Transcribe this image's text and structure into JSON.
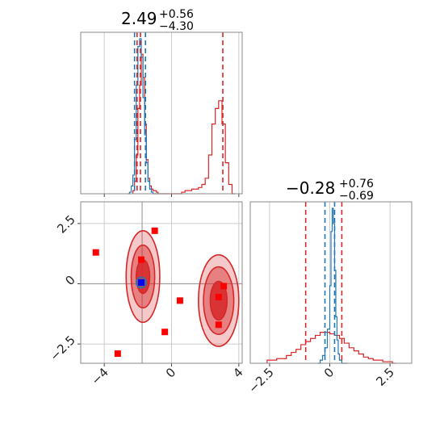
{
  "chart_data": [
    {
      "type": "line",
      "panel": "marginal histogram, parameter 1",
      "title": {
        "value": "2.49",
        "plus": "+0.56",
        "minus": "−4.30"
      },
      "xlim": [
        -5.4,
        4.2
      ],
      "xticks": [
        -4,
        0,
        4
      ],
      "grid": true,
      "series": [
        {
          "color": "#d62728",
          "step_x": [
            -2.3,
            -2.2,
            -2.1,
            -2.0,
            -1.9,
            -1.8,
            -1.7,
            -1.6,
            -1.5,
            -1.4,
            -1.3,
            -1.2,
            -1.1,
            -1.0,
            -0.9,
            -0.8,
            -0.6,
            -0.4,
            0.2,
            0.4,
            0.6,
            0.8,
            1.0,
            1.2,
            1.4,
            1.6,
            1.8,
            2.0,
            2.2,
            2.4,
            2.6,
            2.8,
            3.0,
            3.2,
            3.4,
            3.6
          ],
          "step_y": [
            0.02,
            0.08,
            0.25,
            0.55,
            0.7,
            0.9,
            0.75,
            0.45,
            0.22,
            0.1,
            0.05,
            0.03,
            0.02,
            0.02,
            0.01,
            0.0,
            0.0,
            0.0,
            0.0,
            0.0,
            0.01,
            0.02,
            0.02,
            0.03,
            0.03,
            0.04,
            0.06,
            0.1,
            0.25,
            0.45,
            0.55,
            0.6,
            0.45,
            0.2,
            0.06,
            0.0
          ]
        },
        {
          "color": "#1f77b4",
          "step_x": [
            -2.6,
            -2.5,
            -2.4,
            -2.3,
            -2.2,
            -2.1,
            -2.0,
            -1.9,
            -1.8,
            -1.7,
            -1.6,
            -1.5,
            -1.4,
            -1.3,
            -1.2,
            -1.1,
            -1.0
          ],
          "step_y": [
            0.0,
            0.01,
            0.05,
            0.12,
            0.35,
            0.7,
            0.95,
            1.0,
            0.88,
            0.62,
            0.38,
            0.2,
            0.08,
            0.03,
            0.01,
            0.0,
            0.0
          ]
        }
      ],
      "vlines": [
        {
          "color": "#d62728",
          "x": [
            -2.05,
            -1.85,
            3.05
          ]
        },
        {
          "color": "#1f77b4",
          "x": [
            -2.2,
            -1.55
          ]
        }
      ]
    },
    {
      "type": "scatter",
      "panel": "2D contours, parameter 1 vs parameter 2",
      "xlim": [
        -5.4,
        4.2
      ],
      "ylim": [
        -3.3,
        3.4
      ],
      "xticks": [
        -4,
        0,
        4
      ],
      "yticks": [
        2.5,
        0.0,
        -2.5
      ],
      "grid": true,
      "red_square_points": [
        [
          -4.5,
          1.3
        ],
        [
          -1.0,
          2.2
        ],
        [
          -1.8,
          1.0
        ],
        [
          -1.8,
          0.05
        ],
        [
          -3.2,
          -2.9
        ],
        [
          0.5,
          -0.7
        ],
        [
          -0.4,
          -2.0
        ],
        [
          2.8,
          -1.7
        ],
        [
          2.8,
          -0.55
        ],
        [
          3.1,
          -0.1
        ]
      ],
      "blue_square_points": [
        [
          -1.8,
          0.05
        ]
      ],
      "gray_crosshair": [
        -1.75,
        0.0
      ],
      "red_contours": [
        {
          "center": [
            -1.7,
            0.3
          ],
          "rx": [
            0.4,
            0.7,
            1.0
          ],
          "ry": [
            0.7,
            1.3,
            1.9
          ]
        },
        {
          "center": [
            2.8,
            -0.7
          ],
          "rx": [
            0.5,
            0.9,
            1.2
          ],
          "ry": [
            0.8,
            1.4,
            1.9
          ]
        }
      ],
      "blue_contours": [
        {
          "center": [
            -1.8,
            0.05
          ],
          "rx": [
            0.15,
            0.3
          ],
          "ry": [
            0.1,
            0.22
          ]
        }
      ]
    },
    {
      "type": "line",
      "panel": "marginal histogram, parameter 2",
      "title": {
        "value": "−0.28",
        "plus": "+0.76",
        "minus": "−0.69"
      },
      "xlim": [
        -3.3,
        3.4
      ],
      "xticks": [
        -2.5,
        0.0,
        2.5
      ],
      "grid": true,
      "series": [
        {
          "color": "#d62728",
          "step_x": [
            -2.6,
            -2.2,
            -1.8,
            -1.6,
            -1.4,
            -1.2,
            -1.0,
            -0.8,
            -0.6,
            -0.4,
            -0.2,
            0.0,
            0.2,
            0.4,
            0.6,
            0.8,
            1.0,
            1.2,
            1.4,
            1.6,
            1.8,
            2.0,
            2.2,
            2.6
          ],
          "step_y": [
            0.02,
            0.03,
            0.05,
            0.07,
            0.09,
            0.12,
            0.14,
            0.16,
            0.18,
            0.2,
            0.2,
            0.19,
            0.18,
            0.16,
            0.13,
            0.1,
            0.08,
            0.06,
            0.04,
            0.03,
            0.02,
            0.02,
            0.01,
            0.0
          ]
        },
        {
          "color": "#1f77b4",
          "step_x": [
            -0.5,
            -0.4,
            -0.3,
            -0.2,
            -0.1,
            0.0,
            0.05,
            0.1,
            0.15,
            0.2,
            0.25,
            0.3,
            0.35,
            0.4,
            0.5,
            0.6
          ],
          "step_y": [
            0.0,
            0.02,
            0.05,
            0.1,
            0.22,
            0.5,
            0.85,
            1.0,
            0.9,
            0.6,
            0.3,
            0.15,
            0.06,
            0.02,
            0.0,
            0.0
          ]
        }
      ],
      "vlines": [
        {
          "color": "#d62728",
          "x": [
            -1.0,
            0.5
          ]
        },
        {
          "color": "#1f77b4",
          "x": [
            -0.2,
            0.2
          ]
        }
      ]
    }
  ]
}
